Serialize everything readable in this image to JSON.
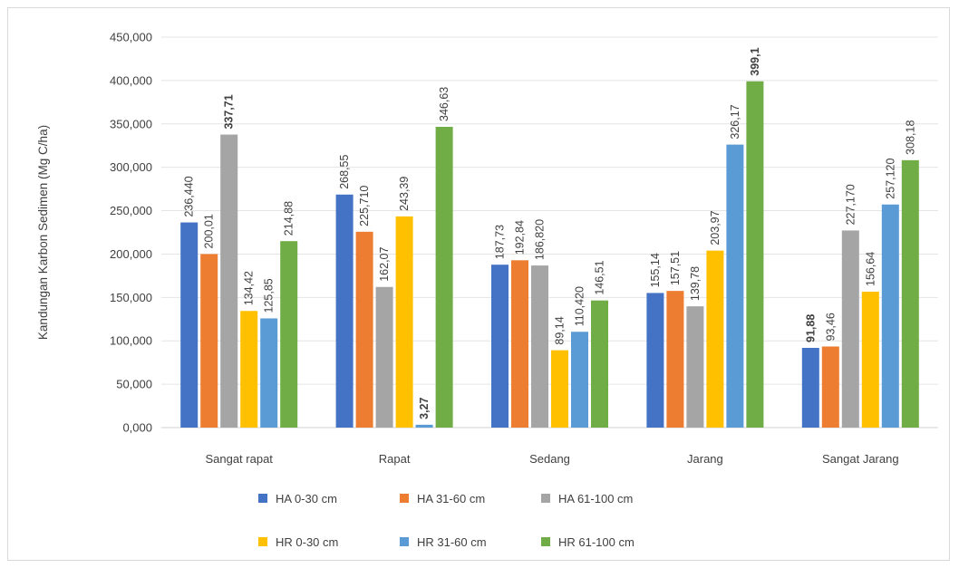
{
  "chart_data": {
    "type": "bar",
    "ylabel": "Kandungan Karbon Sedimen (Mg C/ha)",
    "xlabel": "",
    "ylim": [
      0,
      450
    ],
    "y_ticks": [
      "0,000",
      "50,000",
      "100,000",
      "150,000",
      "200,000",
      "250,000",
      "300,000",
      "350,000",
      "400,000",
      "450,000"
    ],
    "y_tick_values": [
      0,
      50,
      100,
      150,
      200,
      250,
      300,
      350,
      400,
      450
    ],
    "grid": true,
    "legend_position": "bottom",
    "categories": [
      "Sangat rapat",
      "Rapat",
      "Sedang",
      "Jarang",
      "Sangat Jarang"
    ],
    "series": [
      {
        "name": "HA 0-30 cm",
        "color": "#4472c4",
        "values": [
          236.44,
          268.55,
          187.73,
          155.14,
          91.88
        ],
        "labels": [
          "236,440",
          "268,55",
          "187,73",
          "155,14",
          "91,88"
        ]
      },
      {
        "name": "HA 31-60 cm",
        "color": "#ed7d31",
        "values": [
          200.01,
          225.71,
          192.84,
          157.51,
          93.46
        ],
        "labels": [
          "200,01",
          "225,710",
          "192,84",
          "157,51",
          "93,46"
        ]
      },
      {
        "name": "HA 61-100 cm",
        "color": "#a5a5a5",
        "values": [
          337.71,
          162.07,
          186.82,
          139.78,
          227.17
        ],
        "labels": [
          "337,71",
          "162,07",
          "186,820",
          "139,78",
          "227,170"
        ]
      },
      {
        "name": "HR 0-30 cm",
        "color": "#ffc000",
        "values": [
          134.42,
          243.39,
          89.14,
          203.97,
          156.64
        ],
        "labels": [
          "134,42",
          "243,39",
          "89,14",
          "203,97",
          "156,64"
        ]
      },
      {
        "name": "HR 31-60 cm",
        "color": "#5b9bd5",
        "values": [
          125.85,
          3.27,
          110.42,
          326.17,
          257.12
        ],
        "labels": [
          "125,85",
          "3,27",
          "110,420",
          "326,17",
          "257,120"
        ]
      },
      {
        "name": "HR 61-100 cm",
        "color": "#70ad47",
        "values": [
          214.88,
          346.63,
          146.51,
          399.1,
          308.18
        ],
        "labels": [
          "214,88",
          "346,63",
          "146,51",
          "399,1",
          "308,18"
        ]
      }
    ],
    "highlights": [
      {
        "series": 2,
        "category": 0,
        "color": "#ff0000"
      },
      {
        "series": 4,
        "category": 1,
        "color": "#00b050"
      },
      {
        "series": 5,
        "category": 3,
        "color": "#00b050"
      },
      {
        "series": 0,
        "category": 4,
        "color": "#ff0000"
      }
    ]
  }
}
